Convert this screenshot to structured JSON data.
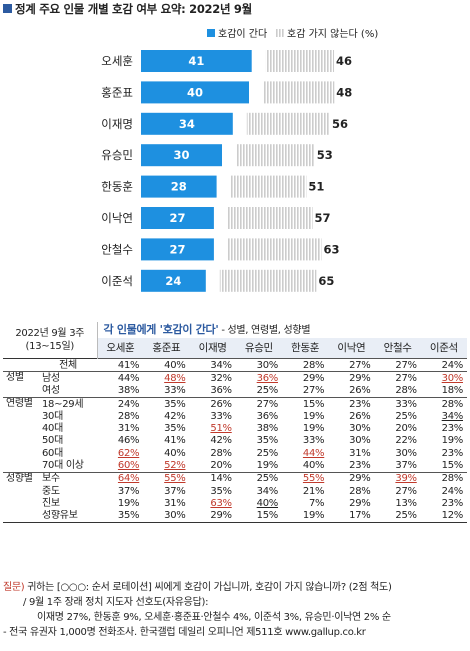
{
  "title": "정계 주요 인물 개별 호감 여부 요약: 2022년 9월",
  "chart_data": {
    "type": "bar",
    "series": [
      {
        "name": "호감이 간다",
        "color": "#1e90e0",
        "values": [
          41,
          40,
          34,
          30,
          28,
          27,
          27,
          24
        ]
      },
      {
        "name": "호감 가지 않는다 (%)",
        "color": "#cccccc",
        "values": [
          46,
          48,
          56,
          53,
          51,
          57,
          63,
          65
        ]
      }
    ],
    "categories": [
      "오세훈",
      "홍준표",
      "이재명",
      "유승민",
      "한동훈",
      "이낙연",
      "안철수",
      "이준석"
    ],
    "xlim": [
      0,
      100
    ]
  },
  "table": {
    "corner_line1": "2022년 9월 3주",
    "corner_line2": "(13~15일)",
    "header_title": "각 인물에게 '호감이 간다'",
    "header_subtitle": " - 성별, 연령별, 성향별",
    "columns": [
      "오세훈",
      "홍준표",
      "이재명",
      "유승민",
      "한동훈",
      "이낙연",
      "안철수",
      "이준석"
    ],
    "rows": [
      {
        "cat": "",
        "label": "전체",
        "values": [
          "41%",
          "40%",
          "34%",
          "30%",
          "28%",
          "27%",
          "27%",
          "24%"
        ],
        "hl": [],
        "ul": [],
        "group": "total"
      },
      {
        "cat": "성별",
        "label": "남성",
        "values": [
          "44%",
          "48%",
          "32%",
          "36%",
          "29%",
          "29%",
          "27%",
          "30%"
        ],
        "hl": [
          1,
          3,
          7
        ],
        "ul": [],
        "group": "sex"
      },
      {
        "cat": "",
        "label": "여성",
        "values": [
          "38%",
          "33%",
          "36%",
          "25%",
          "27%",
          "26%",
          "28%",
          "18%"
        ],
        "hl": [],
        "ul": [],
        "group": "sex"
      },
      {
        "cat": "연령별",
        "label": "18~29세",
        "values": [
          "24%",
          "35%",
          "26%",
          "27%",
          "15%",
          "23%",
          "33%",
          "28%"
        ],
        "hl": [],
        "ul": [],
        "group": "age"
      },
      {
        "cat": "",
        "label": "30대",
        "values": [
          "28%",
          "42%",
          "33%",
          "36%",
          "19%",
          "26%",
          "25%",
          "34%"
        ],
        "hl": [],
        "ul": [
          7
        ],
        "group": "age"
      },
      {
        "cat": "",
        "label": "40대",
        "values": [
          "31%",
          "35%",
          "51%",
          "38%",
          "19%",
          "30%",
          "20%",
          "23%"
        ],
        "hl": [
          2
        ],
        "ul": [],
        "group": "age"
      },
      {
        "cat": "",
        "label": "50대",
        "values": [
          "46%",
          "41%",
          "42%",
          "35%",
          "33%",
          "30%",
          "22%",
          "19%"
        ],
        "hl": [],
        "ul": [],
        "group": "age"
      },
      {
        "cat": "",
        "label": "60대",
        "values": [
          "62%",
          "40%",
          "28%",
          "25%",
          "44%",
          "31%",
          "30%",
          "23%"
        ],
        "hl": [
          0,
          4
        ],
        "ul": [],
        "group": "age"
      },
      {
        "cat": "",
        "label": "70대 이상",
        "values": [
          "60%",
          "52%",
          "20%",
          "19%",
          "40%",
          "23%",
          "37%",
          "15%"
        ],
        "hl": [
          0,
          1
        ],
        "ul": [],
        "group": "age"
      },
      {
        "cat": "성향별",
        "label": "보수",
        "values": [
          "64%",
          "55%",
          "14%",
          "25%",
          "55%",
          "29%",
          "39%",
          "28%"
        ],
        "hl": [
          0,
          1,
          4,
          6
        ],
        "ul": [],
        "group": "ideo"
      },
      {
        "cat": "",
        "label": "중도",
        "values": [
          "37%",
          "37%",
          "35%",
          "34%",
          "21%",
          "28%",
          "27%",
          "24%"
        ],
        "hl": [],
        "ul": [],
        "group": "ideo"
      },
      {
        "cat": "",
        "label": "진보",
        "values": [
          "19%",
          "31%",
          "63%",
          "40%",
          "7%",
          "29%",
          "13%",
          "23%"
        ],
        "hl": [
          2
        ],
        "ul": [
          3
        ],
        "group": "ideo"
      },
      {
        "cat": "",
        "label": "성향유보",
        "values": [
          "35%",
          "30%",
          "29%",
          "15%",
          "19%",
          "17%",
          "25%",
          "12%"
        ],
        "hl": [],
        "ul": [],
        "group": "ideo"
      }
    ]
  },
  "notes": {
    "q_label": "질문)",
    "q_text": " 귀하는 [○○○: 순서 로테이션] 씨에게 호감이 가십니까, 호감이 가지 않습니까? (2점 척도)",
    "line2": "/ 9월 1주 장래 정치 지도자 선호도(자유응답):",
    "line3": "이재명 27%, 한동훈 9%, 오세훈·홍준표·안철수 4%, 이준석 3%, 유승민·이낙연 2% 순",
    "line4": "- 전국 유권자 1,000명 전화조사. 한국갤럽 데일리 오피니언 제511호 www.gallup.co.kr"
  }
}
